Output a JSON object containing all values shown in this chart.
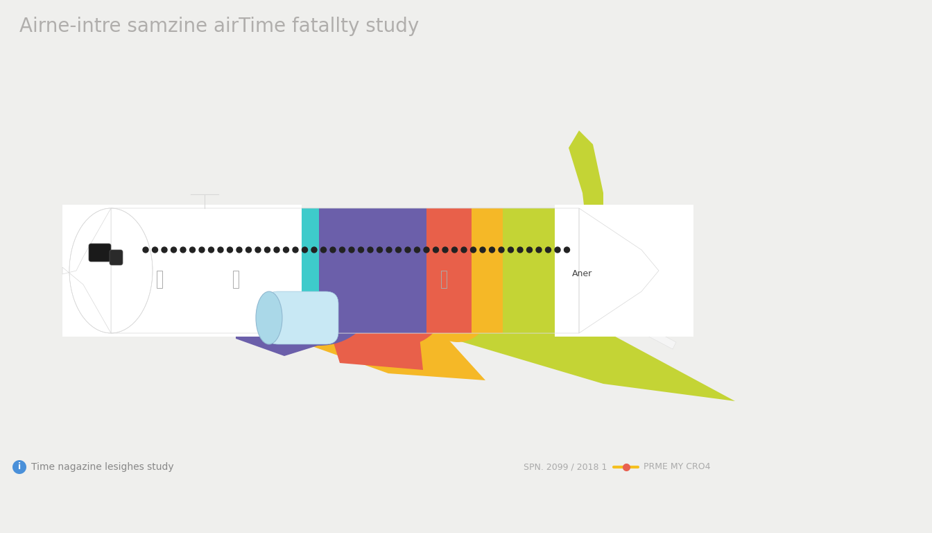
{
  "title": "Airne-intre samzine airTime fatallty study",
  "title_color": "#b0aeac",
  "title_fontsize": 20,
  "background_color": "#efefed",
  "footer_left": "Time nagazine lesighes study",
  "footer_right_label": "SPN. 2099 / 2018 1",
  "footer_right_text": "PRME MY CRO4",
  "section_colors": {
    "cyan": "#3ecbcb",
    "purple": "#6b5faa",
    "red": "#e8604a",
    "orange": "#f5b827",
    "yellow_green": "#c4d435"
  },
  "section_label": "Aner",
  "engine_color_front": "#aad8e8",
  "engine_color_body": "#c8e8f4",
  "white": "#ffffff",
  "tail_white": "#f5f5f5",
  "fuselage_outline": "#d8d8d8"
}
